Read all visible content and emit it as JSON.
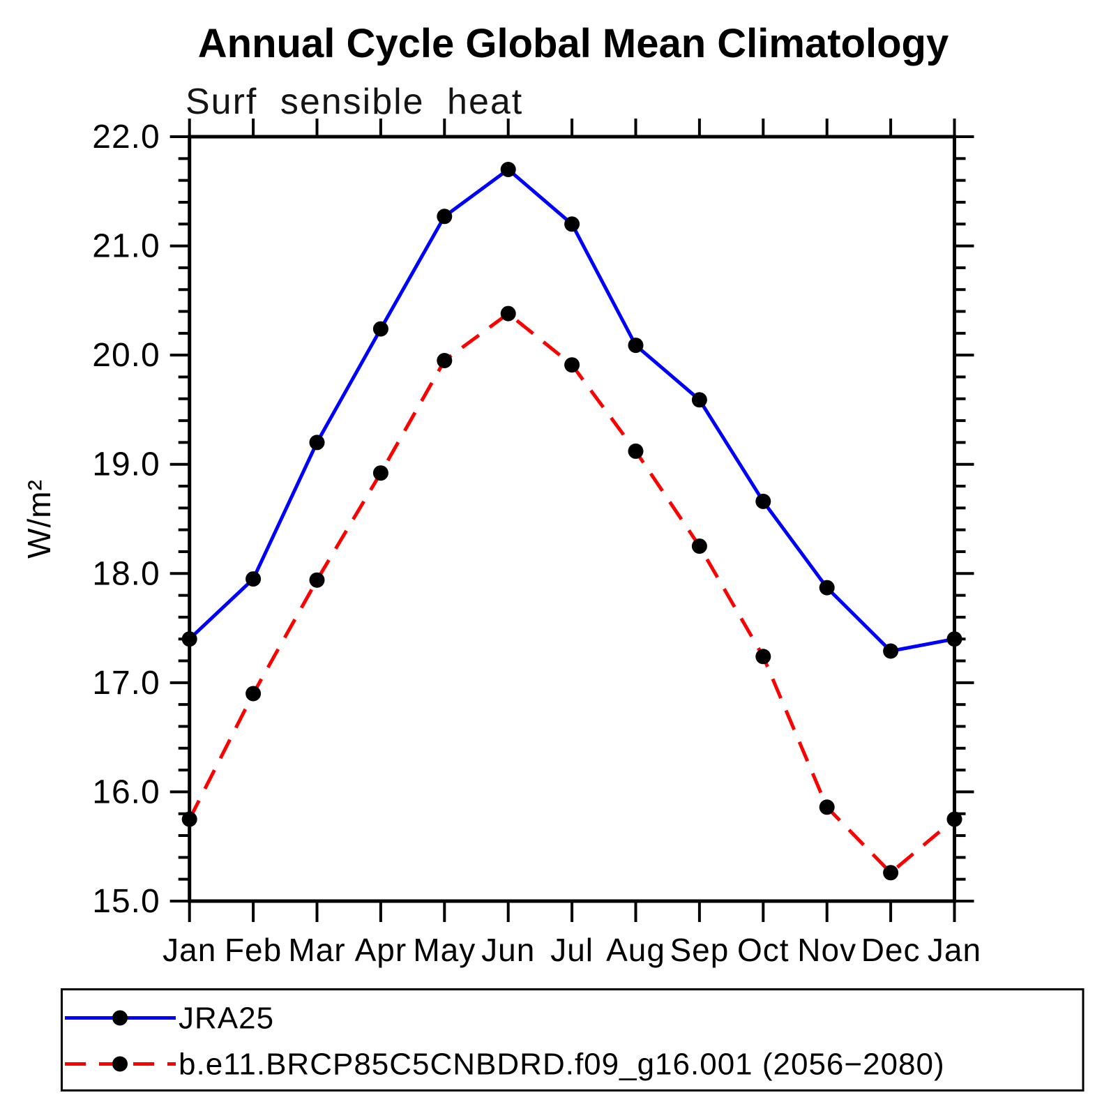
{
  "title": "Annual Cycle Global Mean Climatology",
  "subtitle": "Surf sensible heat",
  "chart_data": {
    "type": "line",
    "x_categories": [
      "Jan",
      "Feb",
      "Mar",
      "Apr",
      "May",
      "Jun",
      "Jul",
      "Aug",
      "Sep",
      "Oct",
      "Nov",
      "Dec",
      "Jan"
    ],
    "ylabel": "W/m²",
    "ylim": [
      15.0,
      22.0
    ],
    "ytick_step": 1.0,
    "ytick_minor_step": 0.2,
    "ytick_labels": [
      "15.0",
      "16.0",
      "17.0",
      "18.0",
      "19.0",
      "20.0",
      "21.0",
      "22.0"
    ],
    "grid": false,
    "legend_position": "bottom",
    "axis_color": "#000000",
    "marker_color": "#000000",
    "background_color": "#ffffff",
    "series": [
      {
        "name": "JRA25",
        "color": "#0000ff",
        "style": "solid",
        "values": [
          17.4,
          17.95,
          19.2,
          20.24,
          21.27,
          21.7,
          21.2,
          20.09,
          19.59,
          18.66,
          17.87,
          17.29,
          17.4
        ]
      },
      {
        "name": "b.e11.BRCP85C5CNBDRD.f09_g16.001 (2056−2080)",
        "color": "#ff0000",
        "style": "dashed",
        "values": [
          15.75,
          16.9,
          17.94,
          18.92,
          19.95,
          20.38,
          19.91,
          19.12,
          18.25,
          17.24,
          15.86,
          15.26,
          15.75
        ]
      }
    ]
  }
}
